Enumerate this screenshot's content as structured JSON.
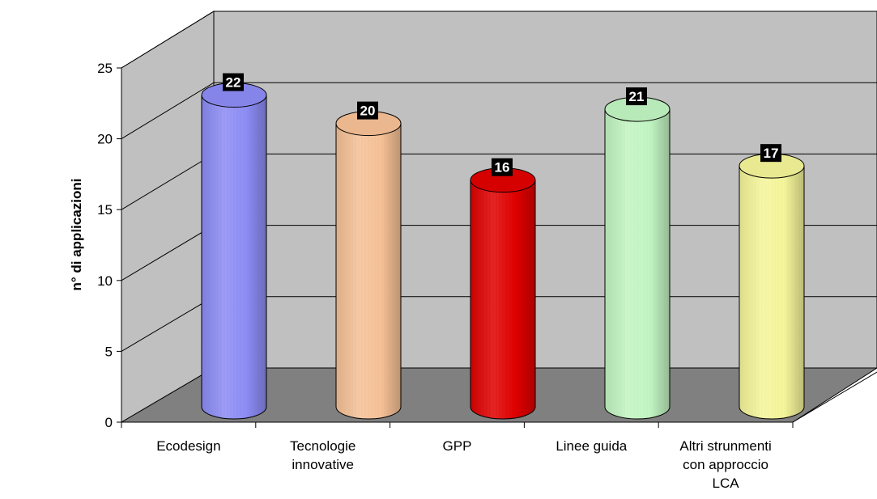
{
  "chart_data": {
    "type": "bar",
    "style": "3d-cylinder",
    "categories": [
      "Ecodesign",
      "Tecnologie innovative",
      "GPP",
      "Linee guida",
      "Altri strunmenti con approccio LCA"
    ],
    "category_lines": [
      [
        "Ecodesign"
      ],
      [
        "Tecnologie",
        "innovative"
      ],
      [
        "GPP"
      ],
      [
        "Linee guida"
      ],
      [
        "Altri strunmenti",
        "con approccio",
        "LCA"
      ]
    ],
    "values": [
      22,
      20,
      16,
      21,
      17
    ],
    "colors": [
      "#8c8cf5",
      "#f6c196",
      "#e00000",
      "#c2f5c2",
      "#f5f59a"
    ],
    "title": "",
    "xlabel": "",
    "ylabel": "n° di applicazioni",
    "ylim": [
      0,
      25
    ],
    "yticks": [
      0,
      5,
      10,
      15,
      20,
      25
    ],
    "grid": true,
    "data_labels": true
  }
}
